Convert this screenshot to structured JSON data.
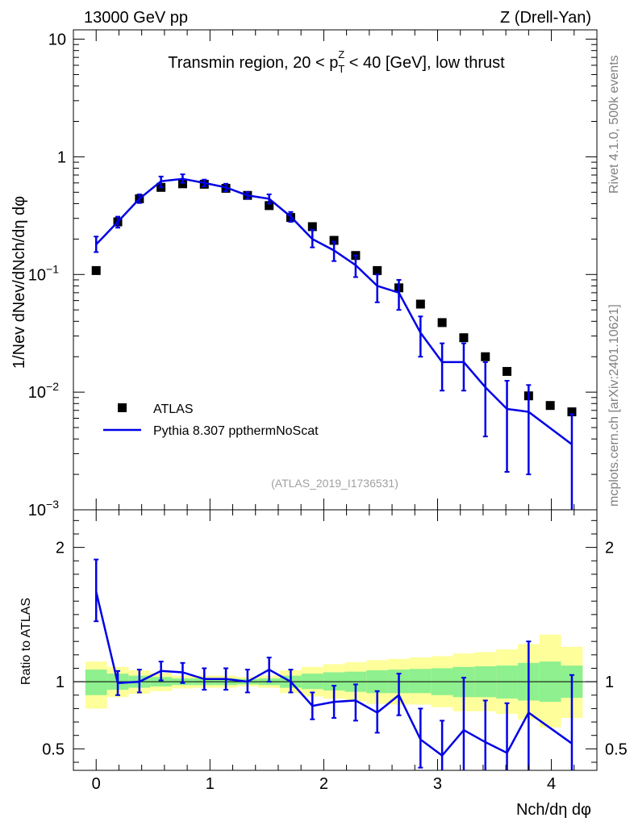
{
  "header": {
    "left": "13000 GeV pp",
    "right": "Z (Drell-Yan)"
  },
  "side_labels": {
    "rivet": "Rivet 4.1.0,  500k events",
    "mcplots": "mcplots.cern.ch [arXiv:2401.10621]"
  },
  "chart_data": [
    {
      "type": "line",
      "title": "Transmin region, 20 < pTZ < 40 [GeV], low thrust",
      "title_parts": {
        "pre": "Transmin region, 20 < p",
        "sup": "Z",
        "sub": "T",
        "post": " < 40 [GeV], low thrust"
      },
      "ylabel": "1/Nev dNev/dNch/dη dφ",
      "yscale": "log",
      "ylim": [
        0.001,
        12
      ],
      "xlim": [
        -0.2,
        4.4
      ],
      "ytick_labels": [
        {
          "value": 10,
          "label": "10"
        },
        {
          "value": 1,
          "label": "1"
        },
        {
          "value": 0.1,
          "label": "10",
          "exp": "−1"
        },
        {
          "value": 0.01,
          "label": "10",
          "exp": "−2"
        },
        {
          "value": 0.001,
          "label": "10",
          "exp": "−3"
        }
      ],
      "watermark": "(ATLAS_2019_I1736531)",
      "legend": {
        "position": "bottom-left",
        "entries": [
          "ATLAS",
          "Pythia 8.307 ppthermNoScat"
        ]
      },
      "series": [
        {
          "name": "ATLAS",
          "style": "square-marker",
          "x": [
            0.0,
            0.19,
            0.38,
            0.57,
            0.76,
            0.95,
            1.14,
            1.33,
            1.52,
            1.71,
            1.9,
            2.09,
            2.28,
            2.47,
            2.66,
            2.85,
            3.04,
            3.23,
            3.42,
            3.61,
            3.8,
            3.99,
            4.18
          ],
          "y": [
            0.108,
            0.28,
            0.44,
            0.55,
            0.59,
            0.585,
            0.54,
            0.47,
            0.385,
            0.305,
            0.255,
            0.195,
            0.145,
            0.108,
            0.077,
            0.056,
            0.039,
            0.029,
            0.02,
            0.015,
            0.0093,
            0.0077,
            0.0068
          ]
        },
        {
          "name": "Pythia 8.307 ppthermNoScat",
          "style": "line",
          "color": "#0000e6",
          "x": [
            0.0,
            0.19,
            0.38,
            0.57,
            0.76,
            0.95,
            1.14,
            1.33,
            1.52,
            1.71,
            1.9,
            2.09,
            2.28,
            2.47,
            2.66,
            2.85,
            3.04,
            3.23,
            3.42,
            3.61,
            3.8,
            4.18
          ],
          "y": [
            0.18,
            0.28,
            0.44,
            0.62,
            0.65,
            0.6,
            0.55,
            0.47,
            0.44,
            0.31,
            0.2,
            0.16,
            0.12,
            0.08,
            0.07,
            0.032,
            0.018,
            0.018,
            0.011,
            0.0072,
            0.0068,
            0.0036
          ],
          "err_lo": [
            0.155,
            0.25,
            0.405,
            0.55,
            0.6,
            0.56,
            0.51,
            0.44,
            0.4,
            0.28,
            0.17,
            0.13,
            0.095,
            0.058,
            0.05,
            0.02,
            0.0103,
            0.0103,
            0.0042,
            0.0021,
            0.002,
            0.0008
          ],
          "err_hi": [
            0.21,
            0.31,
            0.48,
            0.68,
            0.71,
            0.64,
            0.59,
            0.5,
            0.48,
            0.34,
            0.24,
            0.19,
            0.145,
            0.1,
            0.09,
            0.044,
            0.026,
            0.026,
            0.018,
            0.0125,
            0.0115,
            0.0065
          ]
        }
      ]
    },
    {
      "type": "line",
      "ylabel": "Ratio to ATLAS",
      "xlabel": "Nch/dη dφ",
      "xlim": [
        -0.2,
        4.4
      ],
      "ylim": [
        0.34,
        2.28
      ],
      "xtick_labels": [
        "0",
        "1",
        "2",
        "3",
        "4"
      ],
      "ytick_labels": [
        "0.5",
        "1",
        "2"
      ],
      "reference": 1.0,
      "bands": {
        "bin_edges": [
          -0.095,
          0.095,
          0.285,
          0.475,
          0.665,
          0.855,
          1.045,
          1.235,
          1.425,
          1.615,
          1.805,
          1.995,
          2.185,
          2.375,
          2.565,
          2.755,
          2.945,
          3.135,
          3.325,
          3.515,
          3.705,
          3.895,
          4.085,
          4.275
        ],
        "inner_color": "#8ef08e",
        "outer_color": "#fefe9a",
        "inner_lo": [
          0.9,
          0.94,
          0.955,
          0.965,
          0.975,
          0.975,
          0.975,
          0.98,
          0.975,
          0.955,
          0.945,
          0.935,
          0.925,
          0.915,
          0.915,
          0.915,
          0.9,
          0.885,
          0.885,
          0.875,
          0.86,
          0.85,
          0.88
        ],
        "inner_hi": [
          1.09,
          1.06,
          1.045,
          1.035,
          1.025,
          1.025,
          1.025,
          1.02,
          1.025,
          1.045,
          1.06,
          1.07,
          1.075,
          1.085,
          1.09,
          1.095,
          1.1,
          1.11,
          1.115,
          1.12,
          1.14,
          1.15,
          1.12
        ],
        "outer_lo": [
          0.8,
          0.885,
          0.91,
          0.93,
          0.95,
          0.955,
          0.955,
          0.965,
          0.955,
          0.915,
          0.89,
          0.875,
          0.855,
          0.835,
          0.83,
          0.83,
          0.81,
          0.78,
          0.78,
          0.76,
          0.72,
          0.66,
          0.73
        ],
        "outer_hi": [
          1.15,
          1.11,
          1.085,
          1.065,
          1.045,
          1.045,
          1.045,
          1.035,
          1.045,
          1.085,
          1.11,
          1.13,
          1.145,
          1.16,
          1.17,
          1.18,
          1.19,
          1.21,
          1.22,
          1.24,
          1.28,
          1.35,
          1.26
        ]
      },
      "series": [
        {
          "name": "Pythia 8.307 ppthermNoScat / ATLAS",
          "color": "#0000e6",
          "x": [
            0.0,
            0.19,
            0.38,
            0.57,
            0.76,
            0.95,
            1.14,
            1.33,
            1.52,
            1.71,
            1.9,
            2.09,
            2.28,
            2.47,
            2.66,
            2.85,
            3.04,
            3.23,
            3.42,
            3.61,
            3.8,
            4.18
          ],
          "y": [
            1.67,
            0.99,
            1.0,
            1.08,
            1.07,
            1.02,
            1.02,
            1.0,
            1.09,
            1.0,
            0.82,
            0.85,
            0.86,
            0.77,
            0.9,
            0.57,
            0.45,
            0.64,
            0.55,
            0.47,
            0.77,
            0.54
          ],
          "err_lo": [
            1.45,
            0.9,
            0.92,
            1.01,
            0.99,
            0.94,
            0.94,
            0.92,
            1.0,
            0.92,
            0.72,
            0.73,
            0.71,
            0.62,
            0.75,
            0.36,
            0.2,
            0.2,
            0.25,
            0.18,
            0.23,
            0.1
          ],
          "err_hi": [
            1.91,
            1.08,
            1.09,
            1.15,
            1.14,
            1.1,
            1.1,
            1.09,
            1.18,
            1.09,
            0.92,
            0.97,
            0.98,
            0.93,
            1.06,
            0.8,
            0.71,
            1.03,
            0.86,
            0.84,
            1.3,
            1.05
          ]
        }
      ]
    }
  ]
}
